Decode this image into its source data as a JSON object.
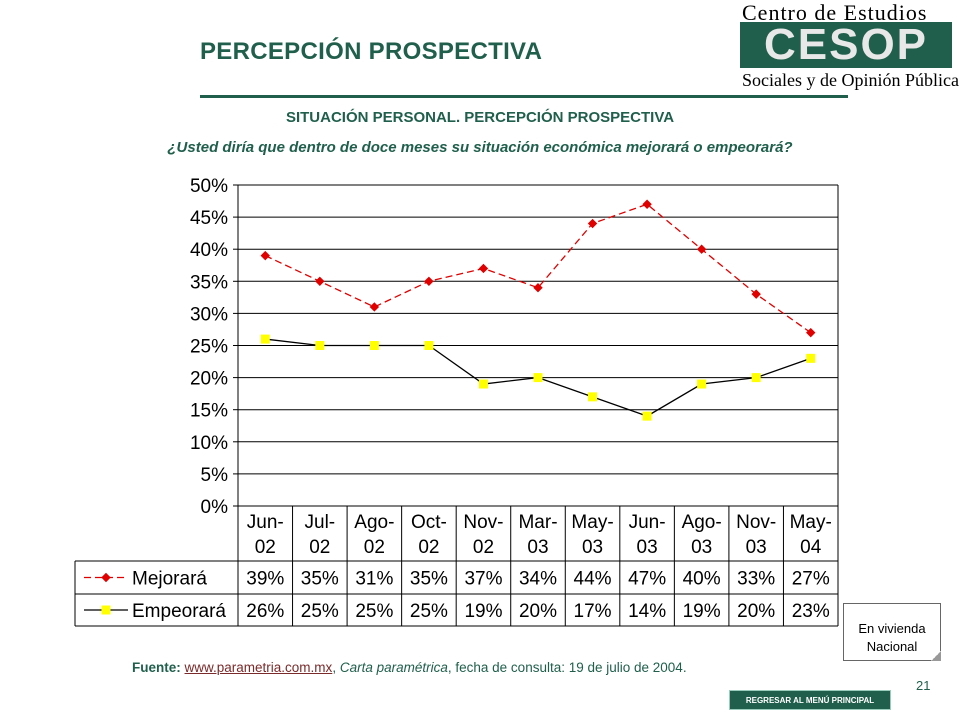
{
  "header": {
    "title": "PERCEPCIÓN PROSPECTIVA",
    "logo_line1": "Centro de Estudios",
    "logo_mark": "CESOP",
    "logo_line2": "Sociales y de Opinión Pública"
  },
  "subtitle": "SITUACIÓN PERSONAL. PERCEPCIÓN PROSPECTIVA",
  "question": "¿Usted diría que dentro de doce meses su situación económica mejorará o empeorará?",
  "chart_data": {
    "type": "line",
    "title": "",
    "xlabel": "",
    "ylabel": "",
    "ylim": [
      0,
      50
    ],
    "yticks": [
      "0%",
      "5%",
      "10%",
      "15%",
      "20%",
      "25%",
      "30%",
      "35%",
      "40%",
      "45%",
      "50%"
    ],
    "grid": true,
    "categories": [
      [
        "Jun-",
        "02"
      ],
      [
        "Jul-",
        "02"
      ],
      [
        "Ago-",
        "02"
      ],
      [
        "Oct-",
        "02"
      ],
      [
        "Nov-",
        "02"
      ],
      [
        "Mar-",
        "03"
      ],
      [
        "May-",
        "03"
      ],
      [
        "Jun-",
        "03"
      ],
      [
        "Ago-",
        "03"
      ],
      [
        "Nov-",
        "03"
      ],
      [
        "May-",
        "04"
      ]
    ],
    "series": [
      {
        "name": "Mejorará",
        "values": [
          39,
          35,
          31,
          35,
          37,
          34,
          44,
          47,
          40,
          33,
          27
        ],
        "labels": [
          "39%",
          "35%",
          "31%",
          "35%",
          "37%",
          "34%",
          "44%",
          "47%",
          "40%",
          "33%",
          "27%"
        ],
        "color": "#e00000",
        "marker": "diamond",
        "dash": true
      },
      {
        "name": "Empeorará",
        "values": [
          26,
          25,
          25,
          25,
          19,
          20,
          17,
          14,
          19,
          20,
          23
        ],
        "labels": [
          "26%",
          "25%",
          "25%",
          "25%",
          "19%",
          "20%",
          "17%",
          "14%",
          "19%",
          "20%",
          "23%"
        ],
        "color": "#ffff00",
        "line_color": "#000000",
        "marker": "square",
        "dash": false
      }
    ],
    "legend": "data-table"
  },
  "note": {
    "line1": "En vivienda",
    "line2": "Nacional"
  },
  "source": {
    "label": "Fuente:",
    "link": "www.parametria.com.mx",
    "sep": ",",
    "italic": "Carta paramétrica",
    "rest": ", fecha de consulta: 19 de julio de 2004."
  },
  "page_number": "21",
  "back_button": "REGRESAR AL MENÚ PRINCIPAL"
}
